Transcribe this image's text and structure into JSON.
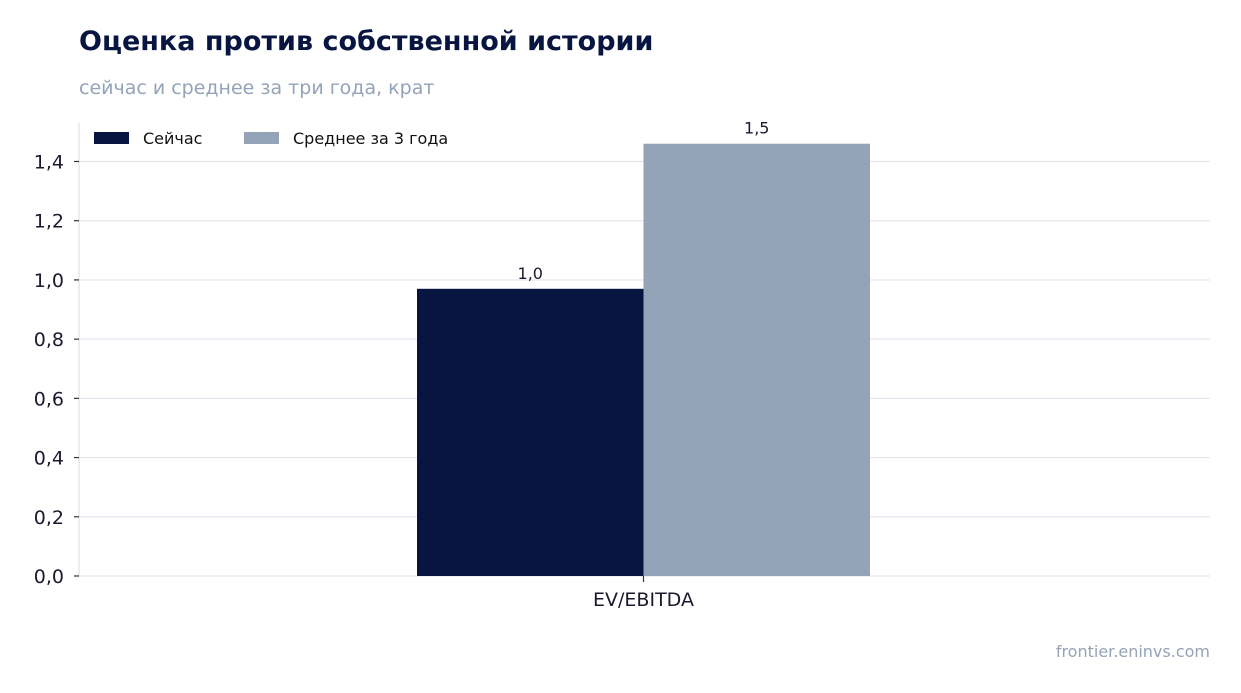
{
  "header": {
    "title": "Оценка против собственной истории",
    "subtitle": "сейчас и среднее за три года, крат"
  },
  "footer": {
    "source": "frontier.eninvs.com"
  },
  "chart_data": {
    "type": "bar",
    "categories": [
      "EV/EBITDA"
    ],
    "series": [
      {
        "name": "Сейчас",
        "values": [
          0.97
        ],
        "labels": [
          "1,0"
        ],
        "color": "#071540"
      },
      {
        "name": "Среднее за 3 года",
        "values": [
          1.46
        ],
        "labels": [
          "1,5"
        ],
        "color": "#94a3b8"
      }
    ],
    "ylim": [
      0,
      1.53
    ],
    "yticks": [
      0,
      0.2,
      0.4,
      0.6,
      0.8,
      1.0,
      1.2,
      1.4
    ],
    "ytick_labels": [
      "0,0",
      "0,2",
      "0,4",
      "0,6",
      "0,8",
      "1,0",
      "1,2",
      "1,4"
    ],
    "grid": true,
    "legend_position": "top-left",
    "colors": {
      "grid": "#e2e6ef",
      "axis": "#dde1ea",
      "text": "#1a1a2e"
    }
  }
}
